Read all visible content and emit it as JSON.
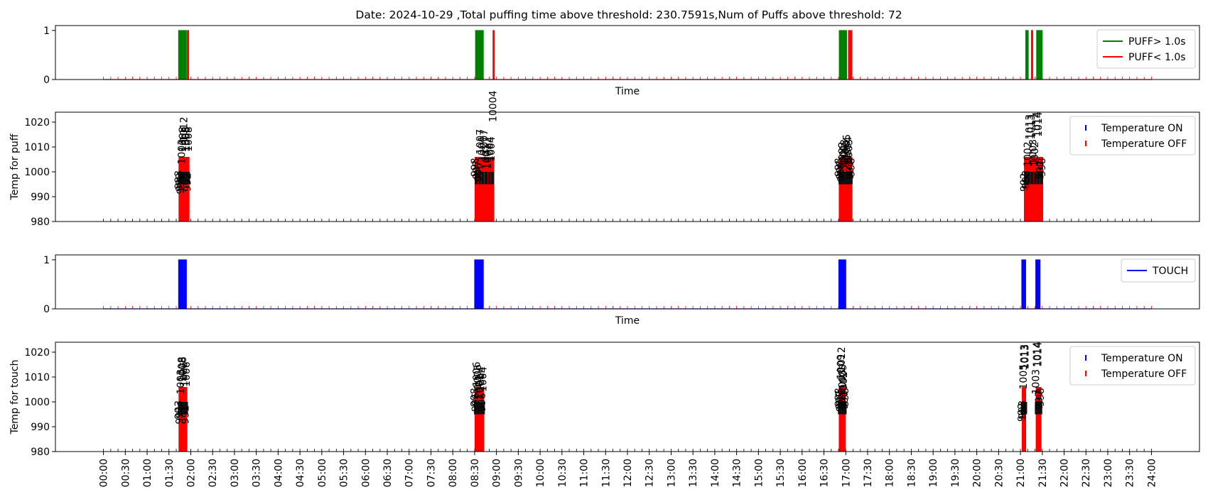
{
  "chart_data": {
    "type": "line",
    "title": "Date: 2024-10-29 ,Total puffing time above threshold: 230.7591s,Num of Puffs above threshold: 72",
    "x_tick_labels": [
      "00:00",
      "00:30",
      "01:00",
      "01:30",
      "02:00",
      "02:30",
      "03:00",
      "03:30",
      "04:00",
      "04:30",
      "05:00",
      "05:30",
      "06:00",
      "06:30",
      "07:00",
      "07:30",
      "08:00",
      "08:30",
      "09:00",
      "09:30",
      "10:00",
      "10:30",
      "11:00",
      "11:30",
      "12:00",
      "12:30",
      "13:00",
      "13:30",
      "14:00",
      "14:30",
      "15:00",
      "15:30",
      "16:00",
      "16:30",
      "17:00",
      "17:30",
      "18:00",
      "18:30",
      "19:00",
      "19:30",
      "20:00",
      "20:30",
      "21:00",
      "21:30",
      "22:00",
      "22:30",
      "23:00",
      "23:30",
      "24:00"
    ],
    "xlim_hours": [
      -1.1,
      25.1
    ],
    "colors": {
      "green": "#008000",
      "red": "#ff0000",
      "blue": "#0000ff"
    },
    "panels": [
      {
        "id": "puff",
        "xlabel": "Time",
        "ylabel": "",
        "ylim": [
          0,
          1.1
        ],
        "yticks": [
          0,
          1
        ],
        "legend": [
          {
            "label": "PUFF> 1.0s",
            "color": "#008000",
            "marker": "line"
          },
          {
            "label": "PUFF< 1.0s",
            "color": "#ff0000",
            "marker": "line"
          }
        ],
        "green_pulses": [
          [
            1.72,
            1.9
          ],
          [
            8.52,
            8.7
          ],
          [
            16.85,
            17.02
          ],
          [
            21.12,
            21.18
          ],
          [
            21.37,
            21.5
          ]
        ],
        "red_pulses": [
          [
            1.92,
            1.95
          ],
          [
            8.92,
            8.95
          ],
          [
            17.06,
            17.14
          ],
          [
            21.25,
            21.28
          ]
        ]
      },
      {
        "id": "temp_puff",
        "xlabel": "",
        "ylabel": "Temp for puff",
        "ylim": [
          980,
          1024
        ],
        "yticks": [
          980,
          990,
          1000,
          1010,
          1020
        ],
        "legend": [
          {
            "label": "Temperature ON",
            "color": "#0000ff",
            "marker": "tick"
          },
          {
            "label": "Temperature OFF",
            "color": "#ff0000",
            "marker": "tick"
          }
        ],
        "bursts": [
          {
            "start": 1.72,
            "end": 1.97,
            "peak": 1006,
            "labels": [
              "993",
              "992",
              "991",
              "1003",
              "1008",
              "1012",
              "1008",
              "1008",
              "992",
              "1008"
            ]
          },
          {
            "start": 8.5,
            "end": 8.95,
            "peak": 1006,
            "labels": [
              "998",
              "997",
              "996",
              "1007",
              "1004",
              "1007",
              "1001",
              "1001",
              "1004",
              "1004",
              "10004"
            ]
          },
          {
            "start": 16.84,
            "end": 17.15,
            "peak": 1006,
            "labels": [
              "998",
              "997",
              "996",
              "1002",
              "1001",
              "1003",
              "1002",
              "1005",
              "1004",
              "1003",
              "997",
              "998"
            ]
          },
          {
            "start": 21.08,
            "end": 21.52,
            "peak": 1006,
            "labels": [
              "992",
              "993",
              "1002",
              "1013",
              "1013",
              "1003",
              "1002",
              "1014",
              "1014",
              "997",
              "998"
            ]
          }
        ]
      },
      {
        "id": "touch",
        "xlabel": "Time",
        "ylabel": "",
        "ylim": [
          0,
          1.1
        ],
        "yticks": [
          0,
          1
        ],
        "legend": [
          {
            "label": "TOUCH",
            "color": "#0000ff",
            "marker": "line"
          }
        ],
        "blue_pulses": [
          [
            1.72,
            1.9
          ],
          [
            8.5,
            8.7
          ],
          [
            16.84,
            17.0
          ],
          [
            21.03,
            21.12
          ],
          [
            21.35,
            21.45
          ]
        ]
      },
      {
        "id": "temp_touch",
        "xlabel": "",
        "ylabel": "Temp for touch",
        "ylim": [
          980,
          1024
        ],
        "yticks": [
          980,
          990,
          1000,
          1010,
          1020
        ],
        "legend": [
          {
            "label": "Temperature ON",
            "color": "#0000ff",
            "marker": "tick"
          },
          {
            "label": "Temperature OFF",
            "color": "#ff0000",
            "marker": "tick"
          }
        ],
        "bursts": [
          {
            "start": 1.72,
            "end": 1.92,
            "peak": 1006,
            "labels": [
              "993",
              "991",
              "1003",
              "1008",
              "1008",
              "1006",
              "991",
              "1006"
            ]
          },
          {
            "start": 8.5,
            "end": 8.72,
            "peak": 1006,
            "labels": [
              "998",
              "996",
              "1006",
              "1005",
              "1001",
              "1001",
              "1004",
              "996",
              "1004"
            ]
          },
          {
            "start": 16.84,
            "end": 17.0,
            "peak": 1006,
            "labels": [
              "998",
              "997",
              "996",
              "1009",
              "1012",
              "1003",
              "1005",
              "1002",
              "997",
              "998"
            ]
          },
          {
            "start": 21.03,
            "end": 21.13,
            "peak": 1006,
            "labels": [
              "992",
              "993",
              "1005",
              "1013",
              "1013"
            ]
          },
          {
            "start": 21.35,
            "end": 21.48,
            "peak": 1006,
            "labels": [
              "1003",
              "1014",
              "1014",
              "997",
              "998"
            ]
          }
        ]
      }
    ]
  }
}
